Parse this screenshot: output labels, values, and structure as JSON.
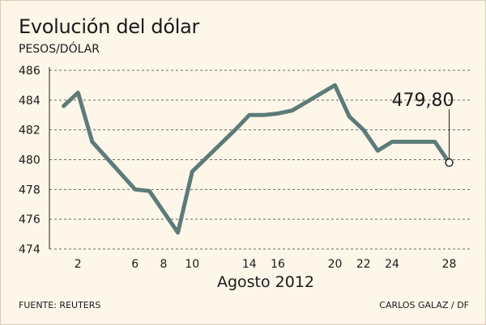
{
  "chart_data": {
    "type": "line",
    "title": "Evolución del dólar",
    "ylabel": "PESOS/DÓLAR",
    "xlabel": "Agosto 2012",
    "x": [
      1,
      2,
      3,
      6,
      7,
      8,
      9,
      10,
      13,
      14,
      15,
      16,
      17,
      20,
      21,
      22,
      23,
      24,
      27,
      28
    ],
    "values": [
      483.6,
      484.5,
      481.2,
      478.0,
      477.9,
      476.5,
      475.1,
      479.2,
      482.0,
      483.0,
      483.0,
      483.1,
      483.3,
      485.0,
      482.9,
      482.0,
      480.6,
      481.2,
      481.2,
      479.8
    ],
    "xticks": [
      2,
      6,
      8,
      10,
      14,
      16,
      20,
      22,
      24,
      28
    ],
    "xtick_labels": [
      "2",
      "6",
      "8",
      "10",
      "14",
      "16",
      "20",
      "22",
      "24",
      "28"
    ],
    "yticks": [
      474,
      476,
      478,
      480,
      482,
      484,
      486
    ],
    "ytick_labels": [
      "474",
      "476",
      "478",
      "480",
      "482",
      "484",
      "486"
    ],
    "ylim": [
      474,
      486
    ],
    "grid": true,
    "line_color": "#5d7b78",
    "annotation": {
      "x": 28,
      "value": 479.8,
      "label": "479,80"
    }
  },
  "footer": {
    "source": "FUENTE: REUTERS",
    "credit": "CARLOS GALAZ / DF"
  }
}
